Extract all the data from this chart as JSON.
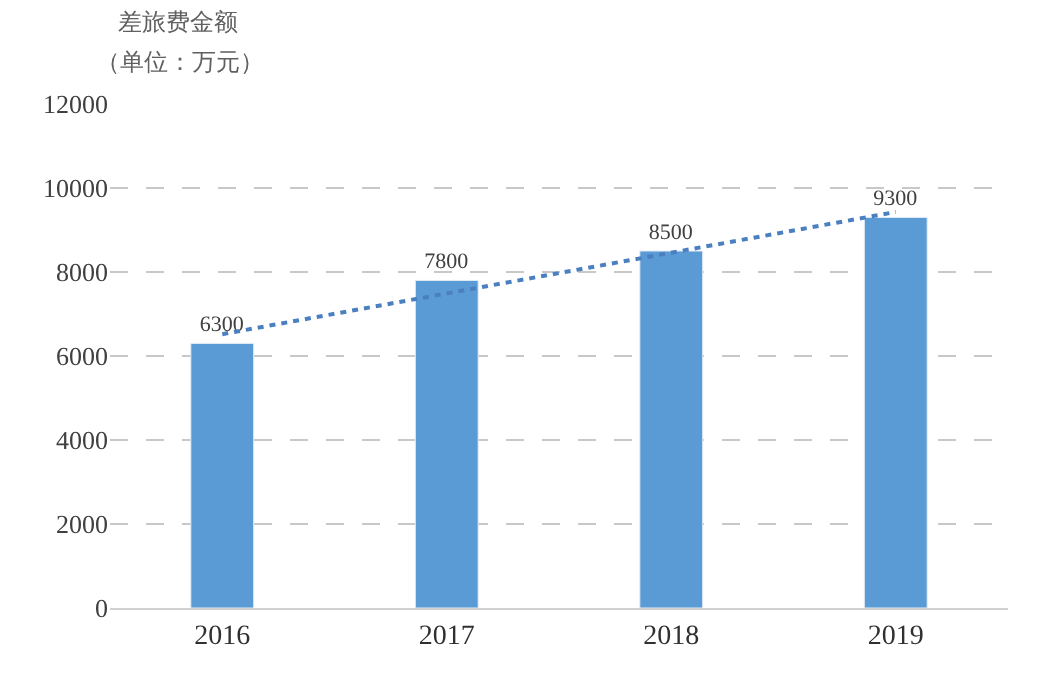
{
  "chart_data": {
    "type": "bar",
    "title": "差旅费金额",
    "subtitle": "（单位：万元）",
    "categories": [
      "2016",
      "2017",
      "2018",
      "2019"
    ],
    "series": [
      {
        "color": "#5b9bd5",
        "values": [
          6300,
          7800,
          8500,
          9300
        ],
        "value_labels": [
          "6300",
          "7800",
          "8500",
          "9300"
        ]
      },
      {
        "type": "line",
        "color": "#4a7fc0",
        "values": [
          6520,
          7490,
          8460,
          9430
        ],
        "line_style": "dotted",
        "marker": "none"
      }
    ],
    "ylim": [
      0,
      12000
    ],
    "yticks": [
      0,
      2000,
      4000,
      6000,
      8000,
      10000,
      12000
    ],
    "grid": "y",
    "legend": false
  }
}
